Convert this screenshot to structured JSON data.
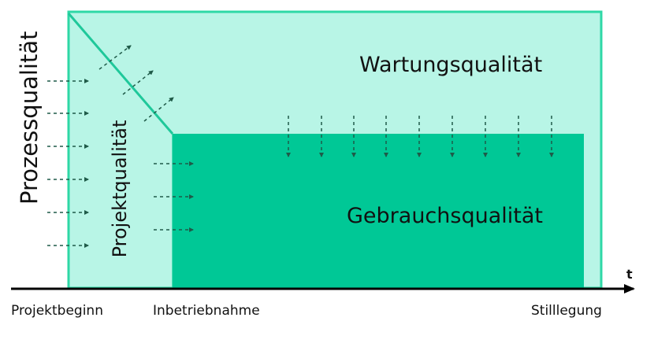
{
  "labels": {
    "prozess": "Prozessqualität",
    "projekt": "Projektqualität",
    "wartung": "Wartungsqualität",
    "gebrauch": "Gebrauchsqualität",
    "axis_t": "t",
    "projektbeginn": "Projektbeginn",
    "inbetriebnahme": "Inbetriebnahme",
    "stilllegung": "Stilllegung"
  },
  "colors": {
    "outer_fill": "#b8f5e6",
    "outer_stroke": "#2ed8a6",
    "inner_fill": "#00c896",
    "arrow": "#1f5a48",
    "axis": "#000000"
  }
}
